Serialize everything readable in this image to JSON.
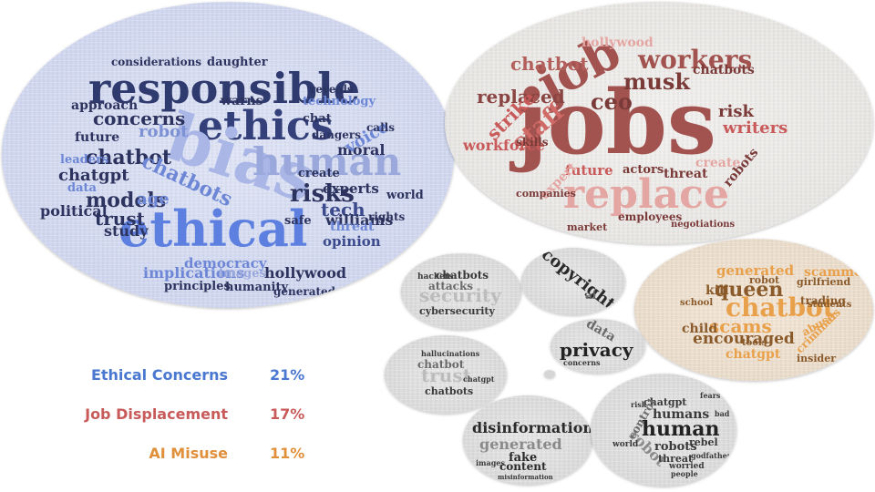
{
  "legend": [
    {
      "label": "Ethical Concerns",
      "percent": "21%",
      "color": "#4a78d0"
    },
    {
      "label": "Job Displacement",
      "percent": "17%",
      "color": "#c85a5a"
    },
    {
      "label": "AI Misuse",
      "percent": "11%",
      "color": "#e0903a"
    }
  ],
  "clouds": {
    "ethics": {
      "bg": "#d6dcf0",
      "words": [
        "responsible",
        "ethics",
        "bias",
        "human",
        "ethical",
        "chatbot",
        "concerns",
        "risks",
        "chatgpt",
        "models",
        "trust",
        "chatbots",
        "robot",
        "tech",
        "experts",
        "opinion",
        "williams",
        "study",
        "political",
        "hollywood",
        "democracy",
        "implications",
        "principles",
        "humanity",
        "generated",
        "images",
        "threat",
        "safe",
        "rights",
        "world",
        "moral",
        "voice",
        "create",
        "warns",
        "future",
        "age",
        "approach",
        "leaders",
        "data",
        "considerations",
        "daughter",
        "technology",
        "chat",
        "reveals",
        "dangers",
        "calls"
      ]
    },
    "jobs": {
      "bg": "#ececea",
      "words": [
        "jobs",
        "job",
        "replace",
        "workers",
        "musk",
        "staff",
        "chatbot",
        "replaced",
        "strike",
        "ceo",
        "workforce",
        "risk",
        "writers",
        "future",
        "threat",
        "create",
        "robots",
        "expert",
        "actors",
        "employees",
        "market",
        "hollywood",
        "chatbots",
        "skills",
        "companies",
        "negotiations"
      ]
    },
    "misuse": {
      "bg": "#f0e2d0",
      "words": [
        "chatbot",
        "queen",
        "scams",
        "encouraged",
        "generated",
        "kill",
        "child",
        "chatgpt",
        "school",
        "insider",
        "trading",
        "girlfriend",
        "abuse",
        "robot",
        "scammers",
        "criminals",
        "students",
        "tools"
      ]
    },
    "security": {
      "words": [
        "security",
        "chatbots",
        "attacks",
        "cybersecurity",
        "hackers"
      ]
    },
    "copyright": {
      "words": [
        "copyright",
        "ai"
      ]
    },
    "privacy": {
      "words": [
        "privacy",
        "data",
        "concerns"
      ]
    },
    "trust": {
      "words": [
        "trust",
        "chatbot",
        "chatbots",
        "hallucinations",
        "chatgpt"
      ]
    },
    "disinformation": {
      "words": [
        "disinformation",
        "generated",
        "fake",
        "content",
        "images",
        "misinformation"
      ]
    },
    "human": {
      "words": [
        "human",
        "humans",
        "robots",
        "robot",
        "chatgpt",
        "control",
        "rebel",
        "threat",
        "worried",
        "people",
        "world",
        "bad",
        "godfather",
        "risk",
        "fears"
      ]
    }
  }
}
